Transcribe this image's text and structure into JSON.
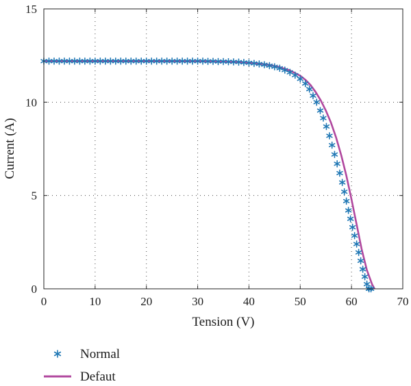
{
  "chart_data": {
    "type": "line",
    "title": "",
    "xlabel": "Tension (V)",
    "ylabel": "Current (A)",
    "xlim": [
      0,
      70
    ],
    "ylim": [
      0,
      15
    ],
    "xticks": [
      0,
      10,
      20,
      30,
      40,
      50,
      60,
      70
    ],
    "yticks": [
      0,
      5,
      10,
      15
    ],
    "xtick_labels": [
      "0",
      "10",
      "20",
      "30",
      "40",
      "50",
      "60",
      "70"
    ],
    "ytick_labels": [
      "0",
      "5",
      "10",
      "15"
    ],
    "grid": "dotted",
    "legend_position": "below-left",
    "series": [
      {
        "name": "Normal",
        "style": "markers",
        "marker": "asterisk",
        "color": "#1f77b4",
        "x": [
          0,
          1,
          2,
          3,
          4,
          5,
          6,
          7,
          8,
          9,
          10,
          11,
          12,
          13,
          14,
          15,
          16,
          17,
          18,
          19,
          20,
          21,
          22,
          23,
          24,
          25,
          26,
          27,
          28,
          29,
          30,
          31,
          32,
          33,
          34,
          35,
          36,
          37,
          38,
          39,
          40,
          41,
          42,
          43,
          44,
          45,
          46,
          47,
          48,
          49,
          50,
          51,
          51.8,
          52.5,
          53.2,
          53.9,
          54.5,
          55.1,
          55.7,
          56.2,
          56.7,
          57.2,
          57.7,
          58.2,
          58.6,
          59.0,
          59.4,
          59.8,
          60.2,
          60.6,
          61.0,
          61.4,
          61.8,
          62.2,
          62.6,
          63.0,
          63.4,
          63.8,
          64.2
        ],
        "y": [
          12.2,
          12.2,
          12.2,
          12.2,
          12.2,
          12.2,
          12.2,
          12.2,
          12.2,
          12.2,
          12.2,
          12.2,
          12.2,
          12.2,
          12.2,
          12.2,
          12.2,
          12.2,
          12.2,
          12.2,
          12.2,
          12.2,
          12.2,
          12.2,
          12.2,
          12.2,
          12.2,
          12.2,
          12.2,
          12.2,
          12.2,
          12.2,
          12.19,
          12.19,
          12.18,
          12.18,
          12.17,
          12.16,
          12.15,
          12.13,
          12.11,
          12.08,
          12.05,
          12.01,
          11.96,
          11.9,
          11.82,
          11.72,
          11.6,
          11.45,
          11.25,
          11.0,
          10.7,
          10.35,
          10.0,
          9.55,
          9.15,
          8.7,
          8.2,
          7.7,
          7.2,
          6.7,
          6.2,
          5.7,
          5.2,
          4.7,
          4.2,
          3.75,
          3.3,
          2.85,
          2.4,
          1.95,
          1.5,
          1.05,
          0.65,
          0.25,
          0.0,
          0.0,
          0.0
        ]
      },
      {
        "name": "Defaut",
        "style": "line",
        "color": "#b0479e",
        "x": [
          0,
          5,
          10,
          15,
          20,
          25,
          30,
          35,
          40,
          42,
          44,
          46,
          48,
          50,
          51,
          52,
          53,
          54,
          55,
          56,
          57,
          58,
          59,
          60,
          61,
          62,
          63,
          64,
          64.5
        ],
        "y": [
          12.2,
          12.2,
          12.2,
          12.2,
          12.2,
          12.2,
          12.19,
          12.17,
          12.12,
          12.07,
          12.0,
          11.88,
          11.7,
          11.42,
          11.2,
          10.92,
          10.55,
          10.1,
          9.55,
          8.9,
          8.1,
          7.15,
          6.05,
          4.8,
          3.45,
          2.1,
          1.0,
          0.25,
          0.0
        ]
      }
    ]
  }
}
